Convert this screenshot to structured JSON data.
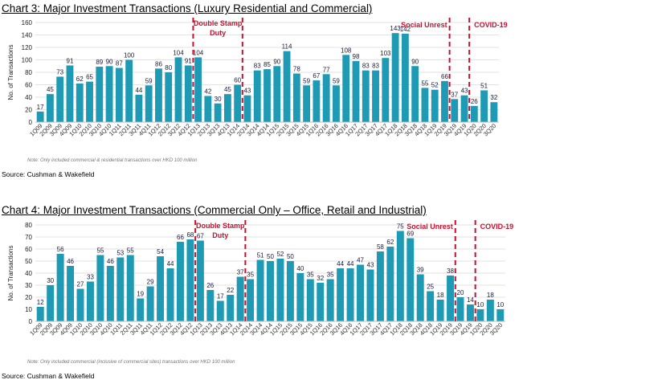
{
  "charts": [
    {
      "title": "Chart 3: Major Investment Transactions (Luxury Residential and Commercial)",
      "source": "Source: Cushman & Wakefield",
      "note": "Note: Only included commercial & residential transactions over HKD 100 million",
      "chart_data": {
        "type": "bar",
        "ylabel": "No. of Transactions",
        "xlabel": "",
        "ylim": [
          0,
          160
        ],
        "yticks": [
          0,
          20,
          40,
          60,
          80,
          100,
          120,
          140,
          160
        ],
        "grid": true,
        "bar_color": "#1e9ab5",
        "categories": [
          "1Q09",
          "2Q09",
          "3Q09",
          "4Q09",
          "1Q10",
          "2Q10",
          "3Q10",
          "4Q10",
          "1Q11",
          "2Q11",
          "3Q11",
          "4Q11",
          "1Q12",
          "2Q12",
          "3Q12",
          "4Q12",
          "1Q13",
          "2Q13",
          "3Q13",
          "4Q13",
          "1Q14",
          "2Q14",
          "3Q14",
          "4Q14",
          "1Q15",
          "2Q15",
          "3Q15",
          "4Q15",
          "1Q16",
          "2Q16",
          "3Q16",
          "4Q16",
          "1Q17",
          "2Q17",
          "3Q17",
          "4Q17",
          "1Q18",
          "2Q18",
          "3Q18",
          "4Q18",
          "1Q19",
          "2Q19",
          "3Q19",
          "4Q19",
          "1Q20",
          "2Q20",
          "3Q20"
        ],
        "values": [
          17,
          45,
          73,
          91,
          62,
          65,
          89,
          90,
          87,
          100,
          44,
          59,
          86,
          80,
          104,
          91,
          104,
          42,
          30,
          45,
          60,
          43,
          83,
          85,
          90,
          114,
          78,
          59,
          67,
          77,
          59,
          108,
          98,
          83,
          83,
          103,
          143,
          142,
          90,
          55,
          52,
          66,
          37,
          43,
          26,
          51,
          32
        ],
        "annotations": [
          {
            "text": "Double Stamp\nDuty",
            "color": "#c8102e",
            "between": [
              16,
              21
            ]
          },
          {
            "text": "Social Unrest",
            "color": "#c8102e",
            "line_after": 41
          },
          {
            "text": "COVID-19",
            "color": "#c8102e",
            "line_after": 43
          }
        ]
      }
    },
    {
      "title": "Chart 4: Major Investment Transactions (Commercial Only – Office, Retail and Industrial)",
      "source": "Source: Cushman & Wakefield",
      "note": "Note: Only included commercial (inclusive of commercial sites) transactions over HKD 100 million",
      "chart_data": {
        "type": "bar",
        "ylabel": "No. of Transactions",
        "xlabel": "",
        "ylim": [
          0,
          80
        ],
        "yticks": [
          0,
          10,
          20,
          30,
          40,
          50,
          60,
          70,
          80
        ],
        "grid": true,
        "bar_color": "#1e9ab5",
        "categories": [
          "1Q09",
          "2Q09",
          "3Q09",
          "4Q09",
          "1Q10",
          "2Q10",
          "3Q10",
          "4Q10",
          "1Q11",
          "2Q11",
          "3Q11",
          "4Q11",
          "1Q12",
          "2Q12",
          "3Q12",
          "4Q12",
          "1Q13",
          "2Q13",
          "3Q13",
          "4Q13",
          "1Q14",
          "2Q14",
          "3Q14",
          "4Q14",
          "1Q15",
          "2Q15",
          "3Q15",
          "4Q15",
          "1Q16",
          "2Q16",
          "3Q16",
          "4Q16",
          "1Q17",
          "2Q17",
          "3Q17",
          "4Q17",
          "1Q18",
          "2Q18",
          "3Q18",
          "4Q18",
          "1Q19",
          "2Q19",
          "3Q19",
          "4Q19",
          "1Q20",
          "2Q20",
          "3Q20"
        ],
        "values": [
          12,
          30,
          56,
          46,
          27,
          33,
          55,
          46,
          53,
          55,
          19,
          29,
          54,
          44,
          66,
          68,
          67,
          26,
          17,
          22,
          37,
          35,
          51,
          50,
          52,
          50,
          40,
          35,
          32,
          35,
          44,
          44,
          47,
          43,
          58,
          62,
          75,
          69,
          39,
          25,
          18,
          38,
          20,
          14,
          10,
          18,
          10
        ],
        "annotations": [
          {
            "text": "Double Stamp\nDuty",
            "color": "#c8102e",
            "between": [
              16,
              21
            ]
          },
          {
            "text": "Social Unrest",
            "color": "#c8102e",
            "line_after": 41
          },
          {
            "text": "COVID-19",
            "color": "#c8102e",
            "line_after": 43
          }
        ]
      }
    }
  ]
}
